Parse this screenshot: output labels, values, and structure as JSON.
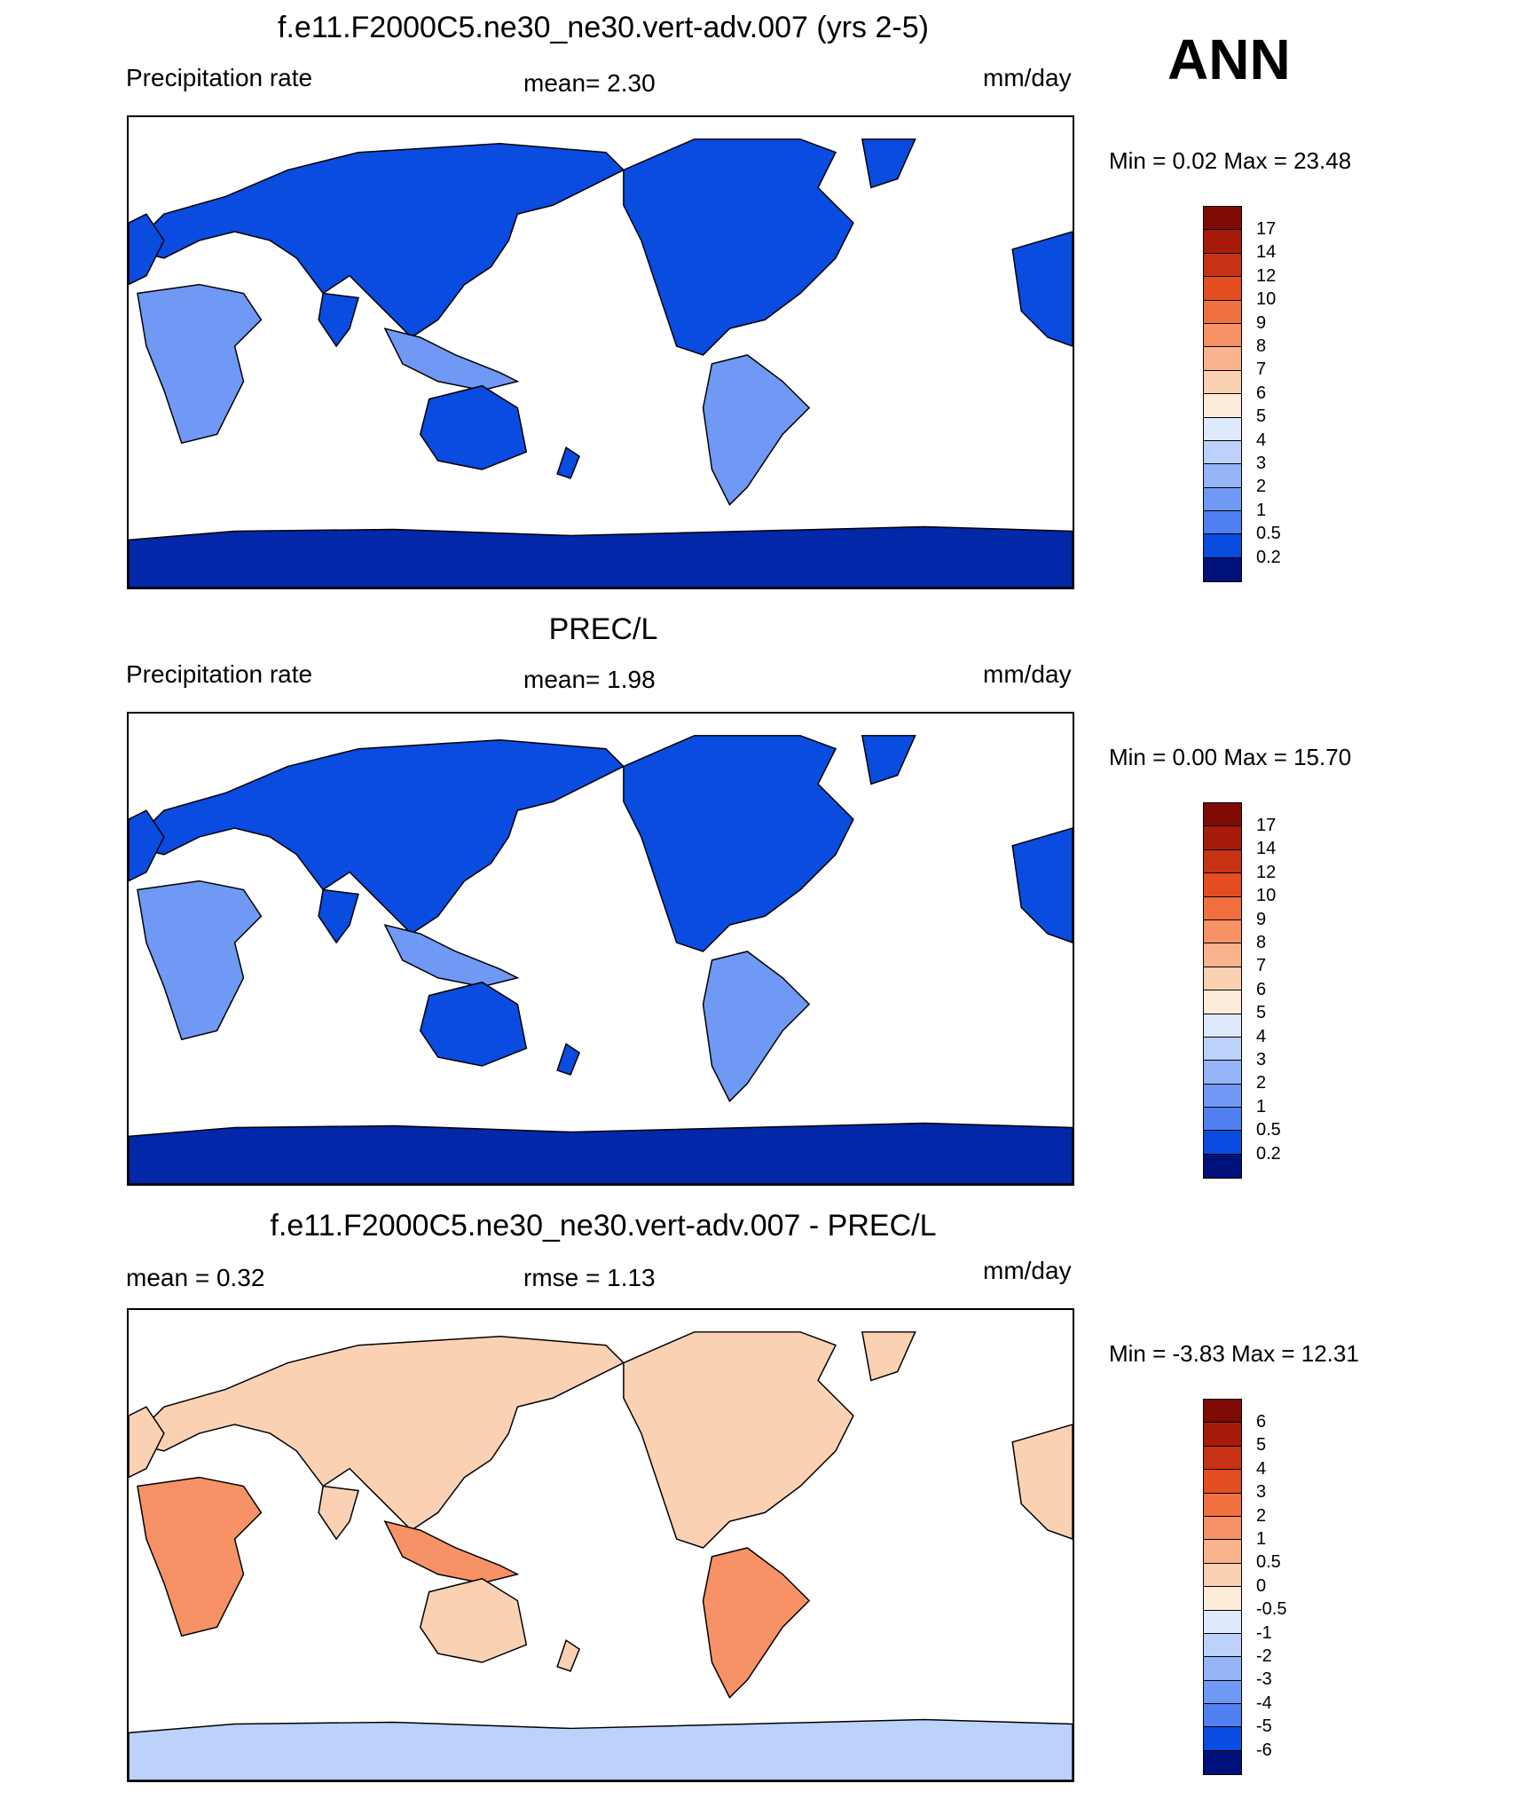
{
  "season": "ANN",
  "units": "mm/day",
  "palettes": {
    "precip": [
      "#00107a",
      "#0227a8",
      "#0538c9",
      "#0a4be0",
      "#2f64ec",
      "#507ff2",
      "#7099f5",
      "#95b5f8",
      "#bdd2fa",
      "#dfe9fc",
      "#fdecda",
      "#fbd1b4",
      "#f9b38d",
      "#f69266",
      "#f17040",
      "#e44d20",
      "#c83214",
      "#a81b0b",
      "#7f0b04"
    ],
    "diff": [
      "#00107a",
      "#0227a8",
      "#0538c9",
      "#0a4be0",
      "#2f64ec",
      "#507ff2",
      "#7099f5",
      "#95b5f8",
      "#bdd2fa",
      "#dfe9fc",
      "#fdecda",
      "#fbd1b4",
      "#f9b38d",
      "#f69266",
      "#f17040",
      "#e44d20",
      "#c83214",
      "#a81b0b",
      "#7f0b04"
    ]
  },
  "panels": [
    {
      "title": "f.e11.F2000C5.ne30_ne30.vert-adv.007 (yrs 2-5)",
      "left_label": "Precipitation rate",
      "center_label": "mean=   2.30",
      "right_label": "mm/day",
      "minmax": "Min =   0.02 Max =  23.48",
      "colorbar_labels": [
        "17",
        "14",
        "12",
        "10",
        "9",
        "8",
        "7",
        "6",
        "5",
        "4",
        "3",
        "2",
        "1",
        "0.5",
        "0.2"
      ],
      "palette": "precip",
      "land_level": 3,
      "ocean": "none"
    },
    {
      "title": "PREC/L",
      "left_label": "Precipitation rate",
      "center_label": "mean=   1.98",
      "right_label": "mm/day",
      "minmax": "Min =   0.00 Max =  15.70",
      "colorbar_labels": [
        "17",
        "14",
        "12",
        "10",
        "9",
        "8",
        "7",
        "6",
        "5",
        "4",
        "3",
        "2",
        "1",
        "0.5",
        "0.2"
      ],
      "palette": "precip",
      "land_level": 3,
      "ocean": "none"
    },
    {
      "title": "f.e11.F2000C5.ne30_ne30.vert-adv.007 - PREC/L",
      "left_label": "mean =   0.32",
      "center_label": "rmse =   1.13",
      "right_label": "mm/day",
      "minmax": "Min =  -3.83 Max =  12.31",
      "colorbar_labels": [
        "6",
        "5",
        "4",
        "3",
        "2",
        "1",
        "0.5",
        "0",
        "-0.5",
        "-1",
        "-2",
        "-3",
        "-4",
        "-5",
        "-6"
      ],
      "palette": "diff",
      "land_level": 1,
      "ocean": "none"
    }
  ]
}
